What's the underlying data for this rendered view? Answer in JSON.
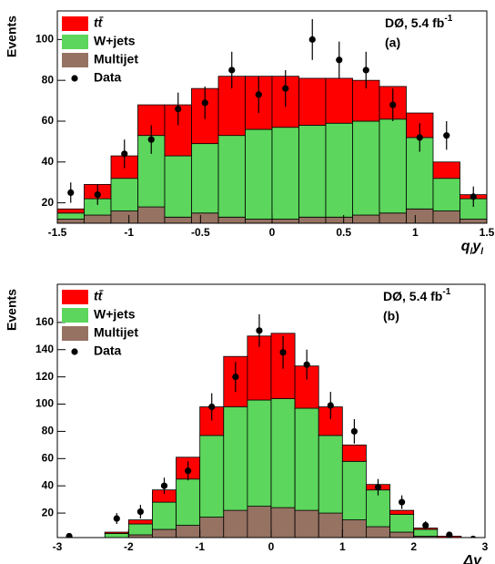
{
  "chart_data": [
    {
      "type": "histogram",
      "xlabel": [
        "q",
        "l",
        "y",
        "l"
      ],
      "ylabel": "Events",
      "annotation": "DØ, 5.4 fb",
      "annotation_sup": "-1",
      "panel_label": "(a)",
      "bins": [
        -1.5,
        -1.3125,
        -1.125,
        -0.9375,
        -0.75,
        -0.5625,
        -0.375,
        -0.1875,
        0,
        0.1875,
        0.375,
        0.5625,
        0.75,
        0.9375,
        1.125,
        1.3125,
        1.5
      ],
      "series": [
        {
          "name": "Multijet",
          "color": "#967262",
          "values": [
            12,
            14,
            16,
            18,
            13,
            15,
            13,
            12,
            12,
            13,
            13,
            14,
            15,
            17,
            16,
            12
          ]
        },
        {
          "name": "W+jets",
          "color": "#5cd65c",
          "values": [
            3,
            8,
            16,
            35,
            30,
            34,
            40,
            44,
            45,
            45,
            46,
            46,
            46,
            35,
            16,
            10
          ]
        },
        {
          "name": "tt̄",
          "color": "#ff0000",
          "values": [
            2,
            7,
            11,
            15,
            25,
            27,
            29,
            26,
            25,
            23,
            22,
            20,
            16,
            12,
            8,
            2
          ]
        }
      ],
      "data": {
        "name": "Data",
        "color": "#000000",
        "values": [
          25,
          24,
          44,
          51,
          66,
          69,
          85,
          73,
          76,
          100,
          90,
          85,
          68,
          52,
          53,
          23
        ],
        "errors": [
          5,
          5,
          7,
          7,
          8,
          8,
          9,
          9,
          9,
          10,
          9,
          9,
          8,
          7,
          7,
          5
        ]
      },
      "xlim": [
        -1.5,
        1.5
      ],
      "ylim": [
        10,
        114
      ],
      "xticks": [
        -1.5,
        -1,
        -0.5,
        0,
        0.5,
        1,
        1.5
      ],
      "yticks": [
        20,
        40,
        60,
        80,
        100
      ]
    },
    {
      "type": "histogram",
      "xlabel": [
        "Δy"
      ],
      "ylabel": "Events",
      "annotation": "DØ, 5.4 fb",
      "annotation_sup": "-1",
      "panel_label": "(b)",
      "bins": [
        -3,
        -2.6667,
        -2.3333,
        -2,
        -1.6667,
        -1.3333,
        -1,
        -0.6667,
        -0.3333,
        0,
        0.3333,
        0.6667,
        1,
        1.3333,
        1.6667,
        2,
        2.3333,
        2.6667,
        3
      ],
      "series": [
        {
          "name": "Multijet",
          "color": "#967262",
          "values": [
            0.5,
            1,
            2,
            4,
            8,
            11,
            17,
            22,
            25,
            24,
            22,
            20,
            15,
            10,
            6,
            3,
            1,
            0.5
          ]
        },
        {
          "name": "W+jets",
          "color": "#5cd65c",
          "values": [
            0.5,
            1,
            3,
            8,
            20,
            34,
            60,
            76,
            78,
            80,
            75,
            57,
            43,
            27,
            13,
            5,
            1,
            0.5
          ]
        },
        {
          "name": "tt̄",
          "color": "#ff0000",
          "values": [
            0,
            0,
            1,
            3,
            9,
            16,
            21,
            37,
            47,
            48,
            31,
            21,
            12,
            4,
            3,
            1,
            1,
            0
          ]
        }
      ],
      "data": {
        "name": "Data",
        "color": "#000000",
        "values": [
          3,
          null,
          16,
          21,
          40,
          51,
          98,
          120,
          154,
          138,
          129,
          99,
          80,
          39,
          28,
          11,
          4,
          1
        ],
        "errors": [
          2,
          null,
          4,
          5,
          6,
          7,
          10,
          11,
          12,
          12,
          11,
          10,
          9,
          6,
          5,
          3,
          2,
          1
        ]
      },
      "xlim": [
        -3,
        3
      ],
      "ylim": [
        2,
        188
      ],
      "xticks": [
        -3,
        -2,
        -1,
        0,
        1,
        2,
        3
      ],
      "yticks": [
        20,
        40,
        60,
        80,
        100,
        120,
        140,
        160
      ]
    }
  ]
}
